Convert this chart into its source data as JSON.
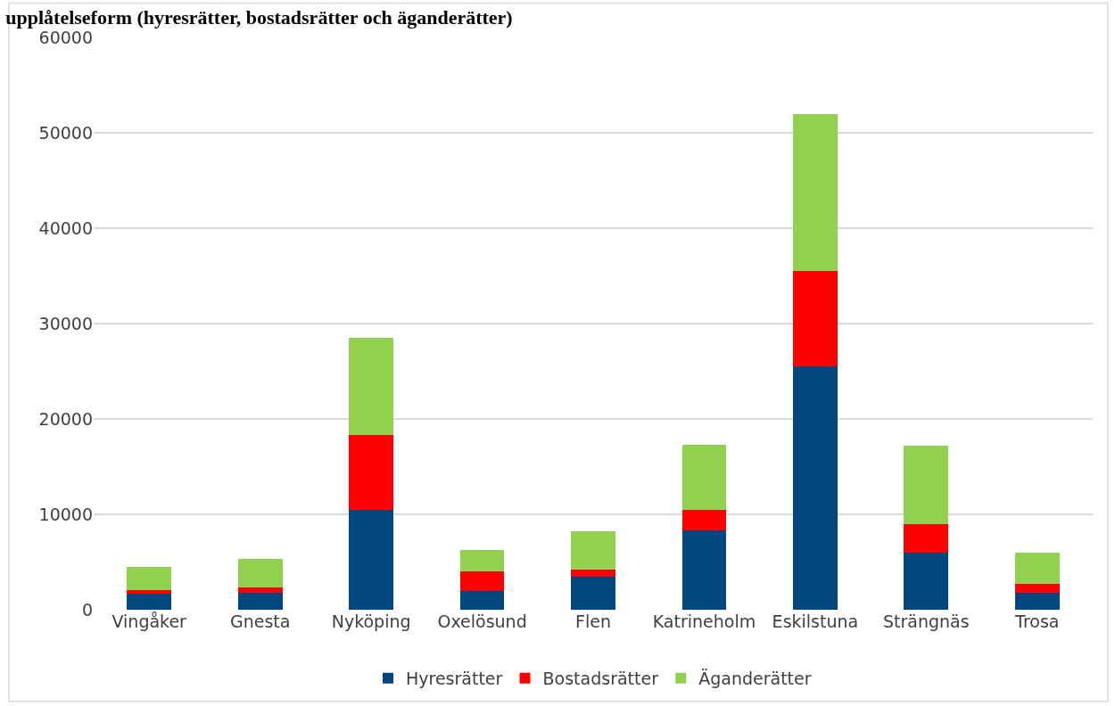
{
  "chart_data": {
    "type": "bar",
    "stacked": true,
    "title": "upplåtelseform (hyresrätter, bostadsrätter och äganderätter)",
    "categories": [
      "Vingåker",
      "Gnesta",
      "Nyköping",
      "Oxelösund",
      "Flen",
      "Katrineholm",
      "Eskilstuna",
      "Strängnäs",
      "Trosa"
    ],
    "series": [
      {
        "name": "Hyresrätter",
        "color": "#00467f",
        "values": [
          1700,
          1800,
          10500,
          2000,
          3500,
          8300,
          25500,
          6000,
          1800
        ]
      },
      {
        "name": "Bostadsrätter",
        "color": "#ff0000",
        "values": [
          400,
          500,
          7800,
          2000,
          700,
          2200,
          10000,
          3000,
          900
        ]
      },
      {
        "name": "Äganderätter",
        "color": "#92d050",
        "values": [
          2400,
          3000,
          10200,
          2300,
          4000,
          6800,
          16500,
          8200,
          3300
        ]
      }
    ],
    "ylim": [
      0,
      60000
    ],
    "yticks": [
      0,
      10000,
      20000,
      30000,
      40000,
      50000,
      60000
    ],
    "grid": "y",
    "legend": "bottom"
  }
}
